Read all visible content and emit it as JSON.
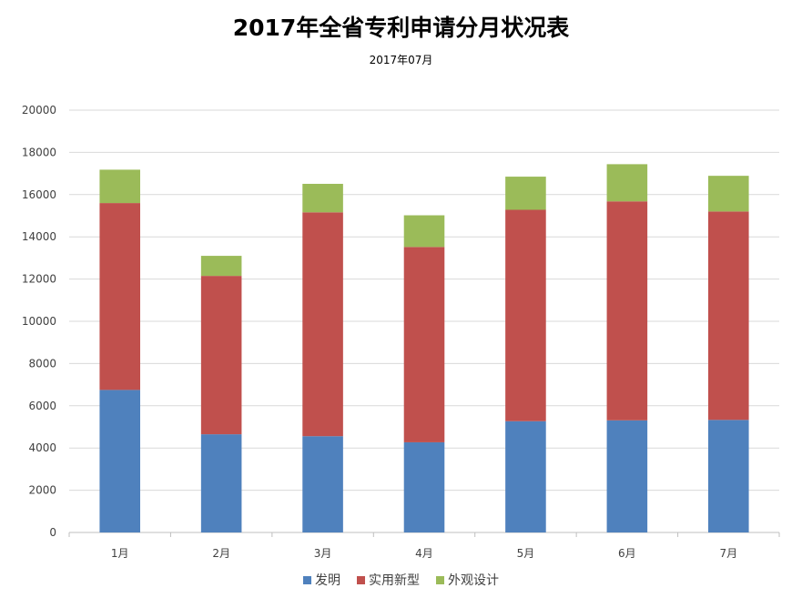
{
  "chart_data": {
    "type": "bar",
    "stacked": true,
    "title": "2017年全省专利申请分月状况表",
    "subtitle": "2017年07月",
    "categories": [
      "1月",
      "2月",
      "3月",
      "4月",
      "5月",
      "6月",
      "7月"
    ],
    "series": [
      {
        "name": "发明",
        "color": "#4f81bd",
        "values": [
          6750,
          4650,
          4560,
          4270,
          5270,
          5310,
          5330
        ]
      },
      {
        "name": "实用新型",
        "color": "#c0504d",
        "values": [
          8850,
          7500,
          10600,
          9250,
          10010,
          10370,
          9870
        ]
      },
      {
        "name": "外观设计",
        "color": "#9bbb59",
        "values": [
          1580,
          950,
          1350,
          1500,
          1570,
          1760,
          1690
        ]
      }
    ],
    "ylim": [
      0,
      20000
    ],
    "yticks": [
      "0",
      "2000",
      "4000",
      "6000",
      "8000",
      "10000",
      "12000",
      "14000",
      "16000",
      "18000",
      "20000"
    ],
    "xlabel": "",
    "ylabel": "",
    "grid": true,
    "legend_position": "bottom"
  }
}
